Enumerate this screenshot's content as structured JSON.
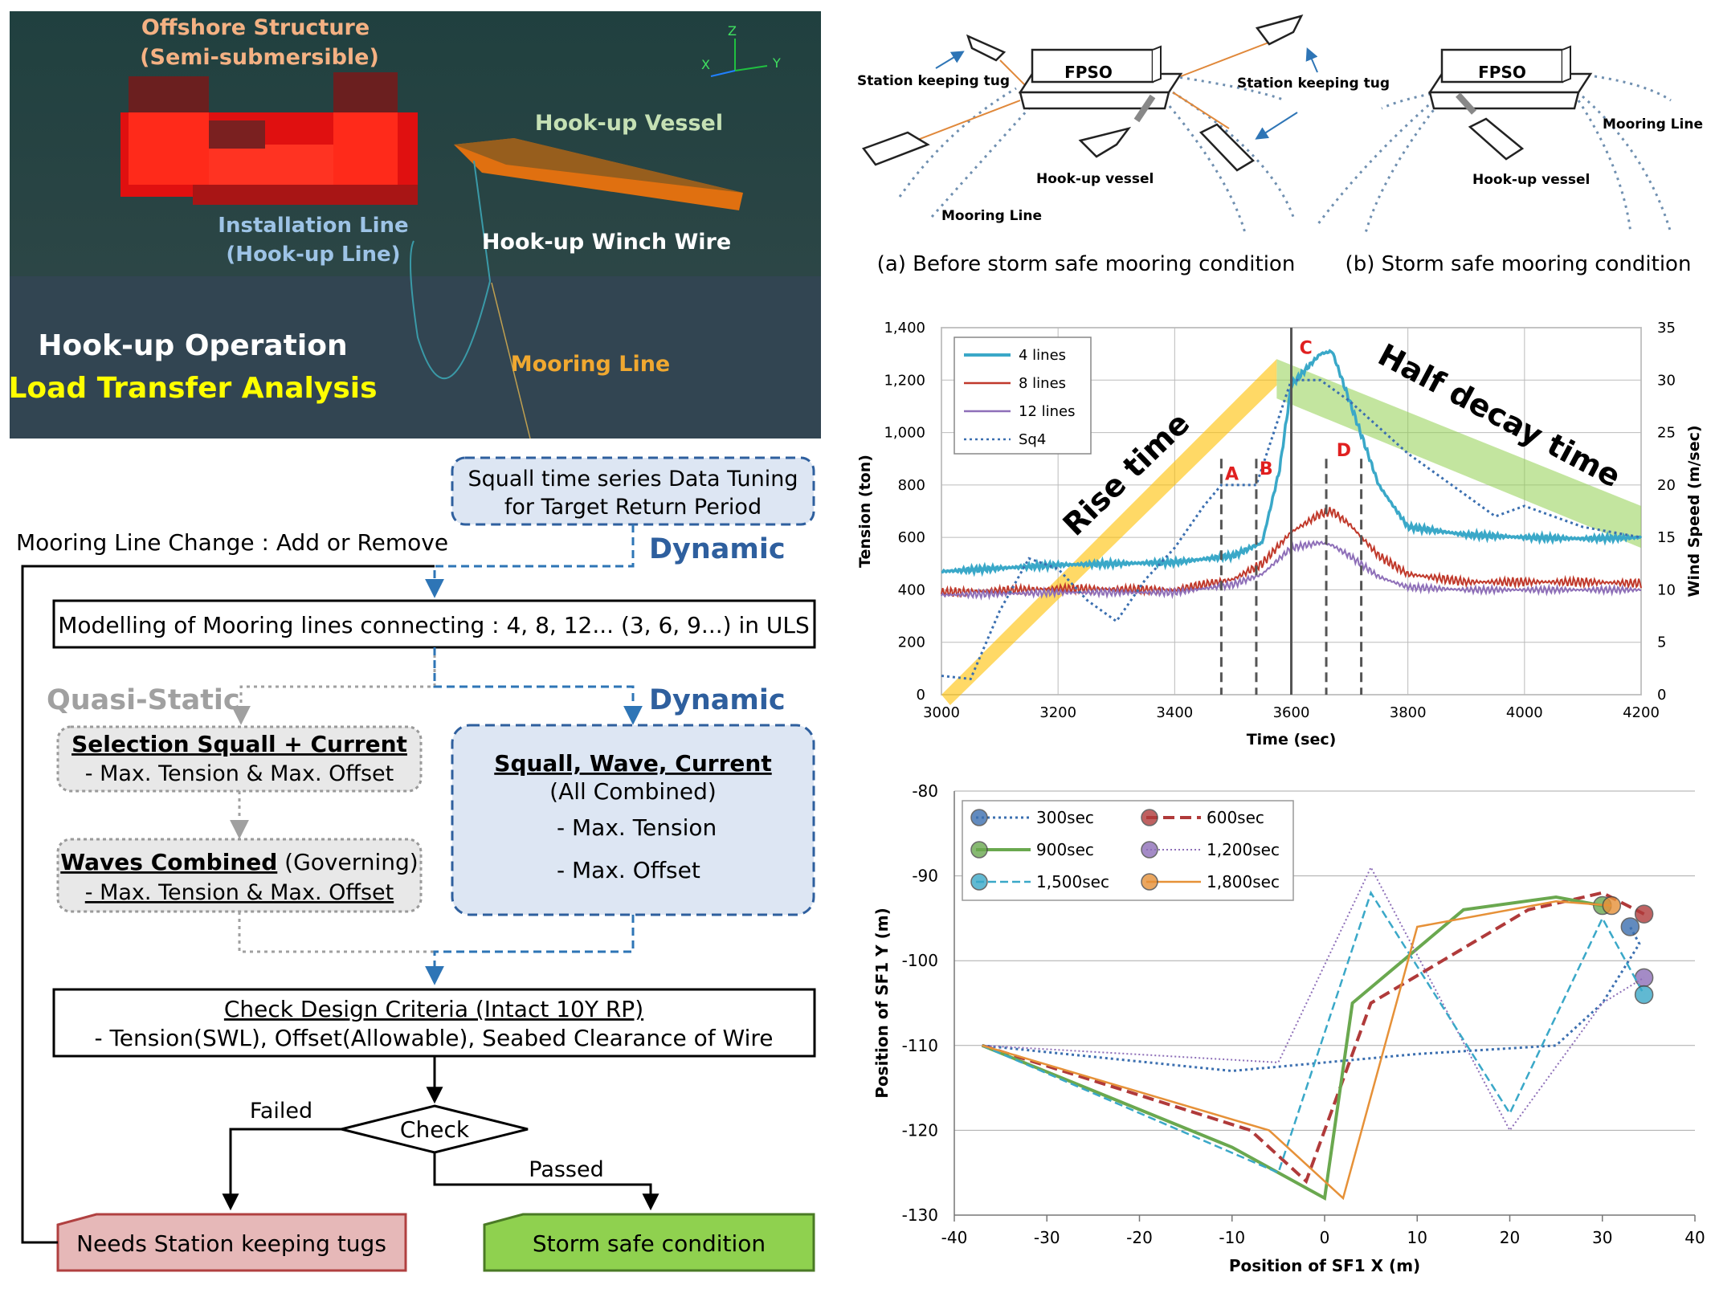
{
  "scene": {
    "offshore_structure_line1": "Offshore Structure",
    "offshore_structure_line2": "(Semi-submersible)",
    "hookup_vessel": "Hook-up Vessel",
    "installation_line1": "Installation Line",
    "installation_line2": "(Hook-up Line)",
    "winch_wire": "Hook-up Winch Wire",
    "mooring_line": "Mooring Line",
    "title_line1": "Hook-up Operation",
    "title_line2": "Load Transfer Analysis",
    "axis_z": "Z",
    "axis_x": "X",
    "axis_y": "Y"
  },
  "mooring_schematic": {
    "fpso": "FPSO",
    "station_keeping_tug": "Station keeping tug",
    "hookup_vessel": "Hook-up vessel",
    "mooring_line": "Mooring Line",
    "caption_a": "(a) Before storm safe mooring condition",
    "caption_b": "(b) Storm safe mooring condition"
  },
  "flowchart": {
    "squall_tuning_line1": "Squall time series Data Tuning",
    "squall_tuning_line2": "for Target Return Period",
    "mooring_change": "Mooring Line Change : Add or Remove",
    "dynamic_1": "Dynamic",
    "modelling": "Modelling of Mooring lines connecting : 4, 8, 12... (3, 6, 9...) in ULS",
    "quasi_static": "Quasi-Static",
    "dynamic_2": "Dynamic",
    "sel_title": "Selection Squall + Current",
    "sel_body": "- Max. Tension & Max. Offset",
    "waves_title": "Waves Combined",
    "waves_gov": " (Governing)",
    "waves_body": "- Max. Tension & Max. Offset",
    "swc_title": "Squall, Wave, Current",
    "swc_sub": "(All Combined)",
    "swc_tension": "- Max. Tension",
    "swc_offset": "- Max. Offset",
    "criteria_title": "Check Design Criteria (Intact 10Y RP)",
    "criteria_body": "- Tension(SWL), Offset(Allowable), Seabed Clearance of Wire",
    "check": "Check",
    "failed": "Failed",
    "passed": "Passed",
    "needs_tugs": "Needs Station keeping tugs",
    "storm_safe": "Storm safe condition"
  },
  "chart_data": [
    {
      "type": "line",
      "title": "",
      "xlabel": "Time (sec)",
      "ylabel": "Tension (ton)",
      "y2label": "Wind Speed (m/sec)",
      "xlim": [
        3000,
        4200
      ],
      "ylim": [
        0,
        1400
      ],
      "y2lim": [
        0,
        35
      ],
      "x_ticks": [
        3000,
        3200,
        3400,
        3600,
        3800,
        4000,
        4200
      ],
      "y_tick_labels": [
        "0",
        "200",
        "400",
        "600",
        "800",
        "1,000",
        "1,200",
        "1,400"
      ],
      "y2_tick_labels": [
        "0",
        "5",
        "10",
        "15",
        "20",
        "25",
        "30",
        "35"
      ],
      "grid": true,
      "legend": "top-left",
      "colors": {
        "4 lines": "#3aa8c8",
        "8 lines": "#c0392b",
        "12 lines": "#8e6fb8",
        "Sq4": "#3b6fb0"
      },
      "series": [
        {
          "name": "4 lines",
          "x": [
            3000,
            3200,
            3400,
            3500,
            3550,
            3580,
            3600,
            3620,
            3650,
            3670,
            3700,
            3750,
            3800,
            3900,
            4000,
            4100,
            4200
          ],
          "y": [
            470,
            495,
            505,
            530,
            580,
            860,
            1180,
            1230,
            1300,
            1310,
            1120,
            800,
            640,
            610,
            600,
            595,
            600
          ]
        },
        {
          "name": "8 lines",
          "x": [
            3000,
            3200,
            3400,
            3500,
            3550,
            3600,
            3650,
            3670,
            3700,
            3750,
            3800,
            3900,
            4000,
            4100,
            4200
          ],
          "y": [
            390,
            405,
            400,
            440,
            500,
            620,
            690,
            700,
            650,
            530,
            460,
            430,
            430,
            430,
            425
          ]
        },
        {
          "name": "12 lines",
          "x": [
            3000,
            3200,
            3400,
            3500,
            3550,
            3600,
            3650,
            3670,
            3700,
            3750,
            3800,
            3900,
            4000,
            4100,
            4200
          ],
          "y": [
            380,
            390,
            390,
            420,
            460,
            560,
            580,
            570,
            530,
            450,
            410,
            400,
            400,
            400,
            400
          ]
        },
        {
          "name": "Sq4",
          "x": [
            3000,
            3050,
            3100,
            3150,
            3200,
            3250,
            3300,
            3350,
            3400,
            3450,
            3480,
            3540,
            3570,
            3600,
            3650,
            3700,
            3800,
            3900,
            3950,
            4000,
            4100,
            4200
          ],
          "y": [
            1.8,
            1.5,
            8,
            13,
            12,
            9,
            7,
            11,
            14,
            18,
            20,
            20,
            25,
            30,
            30,
            28,
            23,
            19,
            17,
            18,
            16,
            15
          ]
        }
      ],
      "annotations": [
        "A",
        "B",
        "C",
        "D",
        "Rise time",
        "Half decay time"
      ],
      "markers_x": [
        3480,
        3540,
        3600,
        3660,
        3720
      ]
    },
    {
      "type": "scatter",
      "title": "",
      "xlabel": "Position of SF1 X (m)",
      "ylabel": "Position of SF1 Y (m)",
      "xlim": [
        -40,
        40
      ],
      "ylim": [
        -130,
        -80
      ],
      "x_ticks": [
        -40,
        -30,
        -20,
        -10,
        0,
        10,
        20,
        30,
        40
      ],
      "y_ticks": [
        -130,
        -120,
        -110,
        -100,
        -90,
        -80
      ],
      "grid": true,
      "legend": "top-left",
      "series": [
        {
          "name": "300sec",
          "color": "#3b6fb0",
          "x": [
            -37,
            -10,
            10,
            25,
            30,
            34,
            33
          ],
          "y": [
            -110,
            -113,
            -111,
            -110,
            -105,
            -98,
            -96
          ]
        },
        {
          "name": "600sec",
          "color": "#b03a3a",
          "x": [
            -37,
            -8,
            -2,
            5,
            22,
            30,
            34.5
          ],
          "y": [
            -110,
            -120,
            -126,
            -105,
            -94,
            -92,
            -94.5
          ]
        },
        {
          "name": "900sec",
          "color": "#6aa84f",
          "x": [
            -37,
            -10,
            0,
            3,
            15,
            25,
            30
          ],
          "y": [
            -110,
            -122,
            -128,
            -105,
            -94,
            -92.5,
            -93.5
          ]
        },
        {
          "name": "1,200sec",
          "color": "#8e6fb8",
          "x": [
            -37,
            -5,
            5,
            20,
            30,
            34.5
          ],
          "y": [
            -110,
            -112,
            -89,
            -120,
            -105,
            -102
          ]
        },
        {
          "name": "1,500sec",
          "color": "#3aa8c8",
          "x": [
            -37,
            -5,
            5,
            20,
            30,
            34.5
          ],
          "y": [
            -110,
            -125,
            -92,
            -118,
            -95,
            -104
          ]
        },
        {
          "name": "1,800sec",
          "color": "#e69138",
          "x": [
            -37,
            -6,
            2,
            10,
            25,
            31
          ],
          "y": [
            -110,
            -120,
            -128,
            -96,
            -93,
            -93.5
          ]
        }
      ]
    }
  ]
}
